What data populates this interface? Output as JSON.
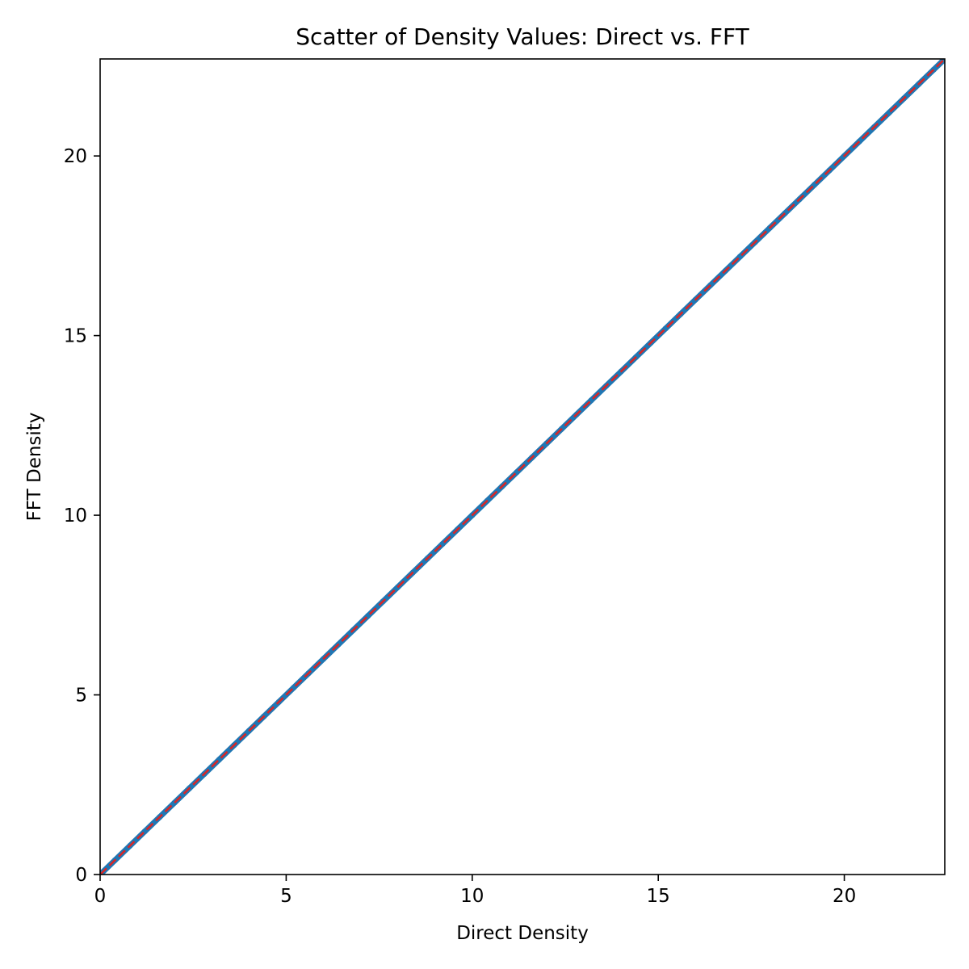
{
  "chart_data": {
    "type": "scatter",
    "title": "Scatter of Density Values: Direct vs. FFT",
    "xlabel": "Direct Density",
    "ylabel": "FFT Density",
    "xlim": [
      0,
      22.7
    ],
    "ylim": [
      0,
      22.7
    ],
    "xticks": [
      0,
      5,
      10,
      15,
      20
    ],
    "yticks": [
      0,
      5,
      10,
      15,
      20
    ],
    "grid": false,
    "series": [
      {
        "color": "#1f77b4",
        "marker": "circle",
        "x_range": [
          0,
          22.7
        ],
        "relation": "y = x",
        "x": [
          0,
          0.4,
          0.8,
          1.2,
          1.6,
          2.0,
          2.4,
          2.8,
          3.2,
          3.6,
          4.0,
          4.4,
          4.8,
          5.2,
          5.6,
          6.0,
          6.4,
          6.8,
          7.2,
          7.6,
          8.0,
          8.4,
          8.8,
          9.2,
          9.6,
          10.0,
          10.4,
          10.8,
          11.2,
          11.6,
          12.0,
          12.4,
          12.8,
          13.2,
          13.6,
          14.0,
          14.4,
          14.8,
          15.2,
          15.6,
          16.0,
          16.4,
          16.8,
          17.2,
          17.6,
          18.0,
          18.4,
          18.8,
          19.2,
          19.6,
          20.0,
          20.4,
          20.8,
          21.2,
          21.6,
          22.0,
          22.4,
          22.7
        ],
        "y": [
          0,
          0.4,
          0.8,
          1.2,
          1.6,
          2.0,
          2.4,
          2.8,
          3.2,
          3.6,
          4.0,
          4.4,
          4.8,
          5.2,
          5.6,
          6.0,
          6.4,
          6.8,
          7.2,
          7.6,
          8.0,
          8.4,
          8.8,
          9.2,
          9.6,
          10.0,
          10.4,
          10.8,
          11.2,
          11.6,
          12.0,
          12.4,
          12.8,
          13.2,
          13.6,
          14.0,
          14.4,
          14.8,
          15.2,
          15.6,
          16.0,
          16.4,
          16.8,
          17.2,
          17.6,
          18.0,
          18.4,
          18.8,
          19.2,
          19.6,
          20.0,
          20.4,
          20.8,
          21.2,
          21.6,
          22.0,
          22.4,
          22.7
        ]
      }
    ],
    "reference_line": {
      "relation": "y = x",
      "from": [
        0,
        0
      ],
      "to": [
        22.7,
        22.7
      ],
      "color": "#d62728",
      "style": "dashed"
    }
  }
}
